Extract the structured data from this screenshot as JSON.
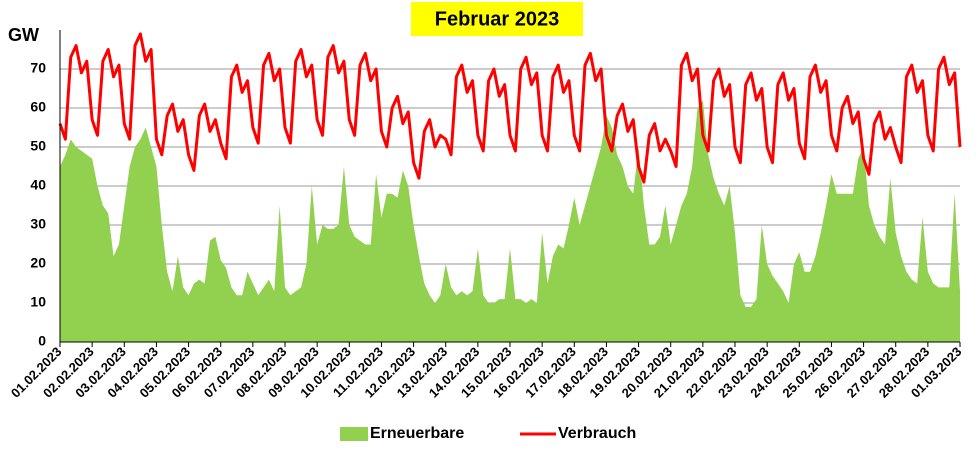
{
  "chart_data": {
    "type": "combo",
    "title": "Februar 2023",
    "y_label": "GW",
    "categories": [
      "01.02.2023",
      null,
      null,
      null,
      null,
      null,
      "02.02.2023",
      null,
      null,
      null,
      null,
      null,
      "03.02.2023",
      null,
      null,
      null,
      null,
      null,
      "04.02.2023",
      null,
      null,
      null,
      null,
      null,
      "05.02.2023",
      null,
      null,
      null,
      null,
      null,
      "06.02.2023",
      null,
      null,
      null,
      null,
      null,
      "07.02.2023",
      null,
      null,
      null,
      null,
      null,
      "08.02.2023",
      null,
      null,
      null,
      null,
      null,
      "09.02.2023",
      null,
      null,
      null,
      null,
      null,
      "10.02.2023",
      null,
      null,
      null,
      null,
      null,
      "11.02.2023",
      null,
      null,
      null,
      null,
      null,
      "12.02.2023",
      null,
      null,
      null,
      null,
      null,
      "13.02.2023",
      null,
      null,
      null,
      null,
      null,
      "14.02.2023",
      null,
      null,
      null,
      null,
      null,
      "15.02.2023",
      null,
      null,
      null,
      null,
      null,
      "16.02.2023",
      null,
      null,
      null,
      null,
      null,
      "17.02.2023",
      null,
      null,
      null,
      null,
      null,
      "18.02.2023",
      null,
      null,
      null,
      null,
      null,
      "19.02.2023",
      null,
      null,
      null,
      null,
      null,
      "20.02.2023",
      null,
      null,
      null,
      null,
      null,
      "21.02.2023",
      null,
      null,
      null,
      null,
      null,
      "22.02.2023",
      null,
      null,
      null,
      null,
      null,
      "23.02.2023",
      null,
      null,
      null,
      null,
      null,
      "24.02.2023",
      null,
      null,
      null,
      null,
      null,
      "25.02.2023",
      null,
      null,
      null,
      null,
      null,
      "26.02.2023",
      null,
      null,
      null,
      null,
      null,
      "27.02.2023",
      null,
      null,
      null,
      null,
      null,
      "28.02.2023",
      null,
      null,
      null,
      null,
      null,
      "01.03.2023"
    ],
    "series": [
      {
        "name": "Erneuerbare",
        "type": "area",
        "color": "#92d050",
        "values": [
          45,
          48,
          52,
          50,
          49,
          48,
          47,
          40,
          35,
          33,
          22,
          25,
          35,
          45,
          50,
          52,
          55,
          50,
          45,
          30,
          18,
          13,
          22,
          14,
          12,
          15,
          16,
          15,
          26,
          27,
          21,
          19,
          14,
          12,
          12,
          18,
          15,
          12,
          14,
          16,
          13,
          35,
          14,
          12,
          13,
          14,
          20,
          40,
          25,
          30,
          29,
          29,
          30,
          45,
          30,
          27,
          26,
          25,
          25,
          43,
          32,
          38,
          38,
          37,
          44,
          40,
          30,
          22,
          15,
          12,
          10,
          12,
          20,
          14,
          12,
          13,
          12,
          13,
          24,
          12,
          10,
          10,
          11,
          11,
          24,
          11,
          11,
          10,
          11,
          10,
          28,
          15,
          22,
          25,
          24,
          30,
          37,
          30,
          35,
          40,
          45,
          50,
          58,
          55,
          48,
          45,
          40,
          38,
          50,
          35,
          25,
          25,
          27,
          35,
          25,
          30,
          35,
          38,
          45,
          60,
          62,
          48,
          42,
          38,
          35,
          40,
          28,
          12,
          9,
          9,
          11,
          30,
          20,
          17,
          15,
          13,
          10,
          20,
          23,
          18,
          18,
          22,
          28,
          35,
          43,
          38,
          38,
          38,
          38,
          47,
          50,
          35,
          30,
          27,
          25,
          42,
          28,
          22,
          18,
          16,
          15,
          32,
          18,
          15,
          14,
          14,
          14,
          38,
          13
        ]
      },
      {
        "name": "Verbrauch",
        "type": "line",
        "color": "#ff0000",
        "values": [
          56,
          52,
          73,
          76,
          69,
          72,
          57,
          53,
          72,
          75,
          68,
          71,
          56,
          52,
          76,
          79,
          72,
          75,
          52,
          48,
          58,
          61,
          54,
          57,
          48,
          44,
          58,
          61,
          54,
          57,
          51,
          47,
          68,
          71,
          64,
          67,
          55,
          51,
          71,
          74,
          67,
          70,
          55,
          51,
          72,
          75,
          68,
          71,
          57,
          53,
          73,
          76,
          69,
          72,
          57,
          53,
          71,
          74,
          67,
          70,
          54,
          50,
          60,
          63,
          56,
          59,
          46,
          42,
          54,
          57,
          50,
          53,
          52,
          48,
          68,
          71,
          64,
          67,
          53,
          49,
          67,
          70,
          63,
          66,
          53,
          49,
          70,
          73,
          66,
          69,
          53,
          49,
          68,
          71,
          64,
          67,
          53,
          49,
          71,
          74,
          67,
          70,
          53,
          49,
          58,
          61,
          54,
          57,
          45,
          41,
          53,
          56,
          49,
          52,
          49,
          45,
          71,
          74,
          67,
          70,
          53,
          49,
          67,
          70,
          63,
          66,
          50,
          46,
          66,
          69,
          62,
          65,
          50,
          46,
          66,
          69,
          62,
          65,
          51,
          47,
          68,
          71,
          64,
          67,
          53,
          49,
          60,
          63,
          56,
          59,
          47,
          43,
          56,
          59,
          52,
          55,
          50,
          46,
          68,
          71,
          64,
          67,
          53,
          49,
          70,
          73,
          66,
          69,
          50
        ]
      }
    ],
    "ylim": [
      0,
      80
    ],
    "yticks": [
      0,
      10,
      20,
      30,
      40,
      50,
      60,
      70
    ],
    "grid": true
  }
}
